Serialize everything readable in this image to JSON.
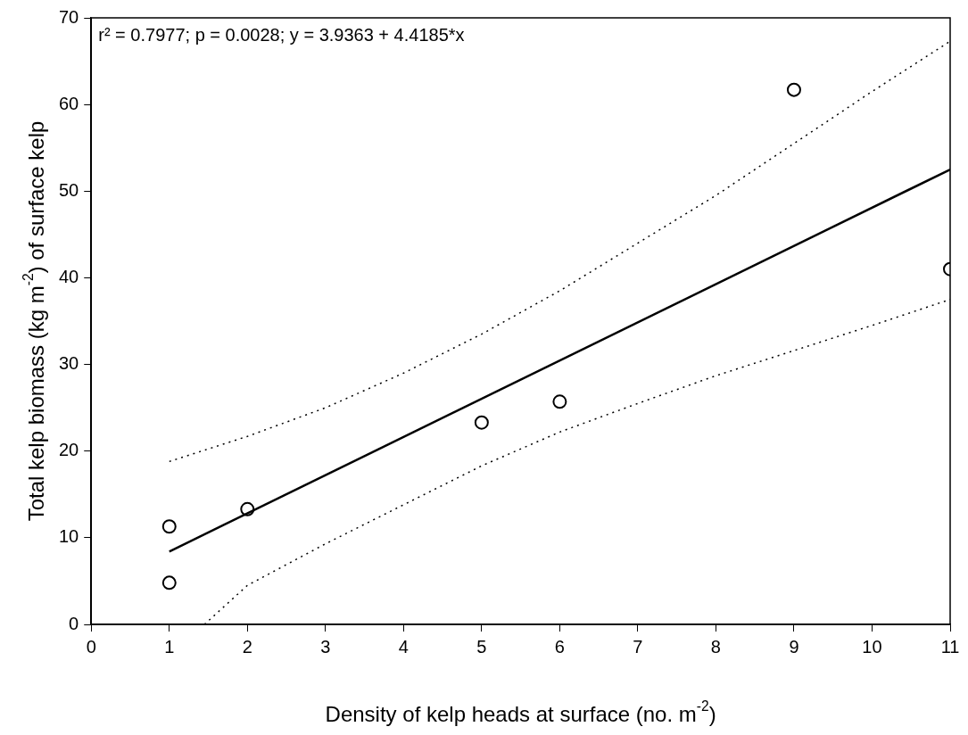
{
  "chart_data": {
    "type": "scatter",
    "xlabel": "Density of kelp heads at surface (no. m$^{-2}$)",
    "ylabel": "Total kelp biomass (kg m$^{-2}$) of surface kelp",
    "annotations": [
      "r² = 0.7977; p = 0.0028; y = 3.9363 + 4.4185*x"
    ],
    "xlim": [
      0,
      11
    ],
    "xticks": [
      0,
      1,
      2,
      3,
      4,
      5,
      6,
      7,
      8,
      9,
      10,
      11
    ],
    "ylim": [
      0,
      70
    ],
    "yticks": [
      0,
      10,
      20,
      30,
      40,
      50,
      60,
      70
    ],
    "grid": false,
    "series": [
      {
        "type": "scatter",
        "color": "#000000",
        "marker": "circle",
        "x": [
          1,
          1,
          2,
          5,
          6,
          9,
          11
        ],
        "values": [
          11.3,
          4.8,
          13.3,
          23.3,
          25.7,
          61.7,
          41.0
        ]
      },
      {
        "type": "line",
        "color": "#000000",
        "marker": "none",
        "line_style": "solid",
        "x": [
          1,
          11
        ],
        "values": [
          8.4,
          52.5
        ]
      },
      {
        "type": "line",
        "color": "#000000",
        "marker": "none",
        "line_style": "dotted",
        "x": [
          1,
          2,
          3,
          4,
          5,
          6,
          7,
          8,
          9,
          10,
          11
        ],
        "values": [
          18.8,
          21.7,
          25,
          29,
          33.5,
          38.5,
          44,
          49.5,
          55.5,
          61.5,
          67.3
        ]
      },
      {
        "type": "line",
        "color": "#000000",
        "marker": "none",
        "line_style": "dotted",
        "x": [
          1.45,
          2,
          3,
          4,
          5,
          6,
          7,
          8,
          9,
          10,
          11
        ],
        "values": [
          0,
          4.5,
          9.3,
          13.8,
          18.3,
          22.2,
          25.5,
          28.7,
          31.6,
          34.5,
          37.5
        ]
      }
    ]
  }
}
